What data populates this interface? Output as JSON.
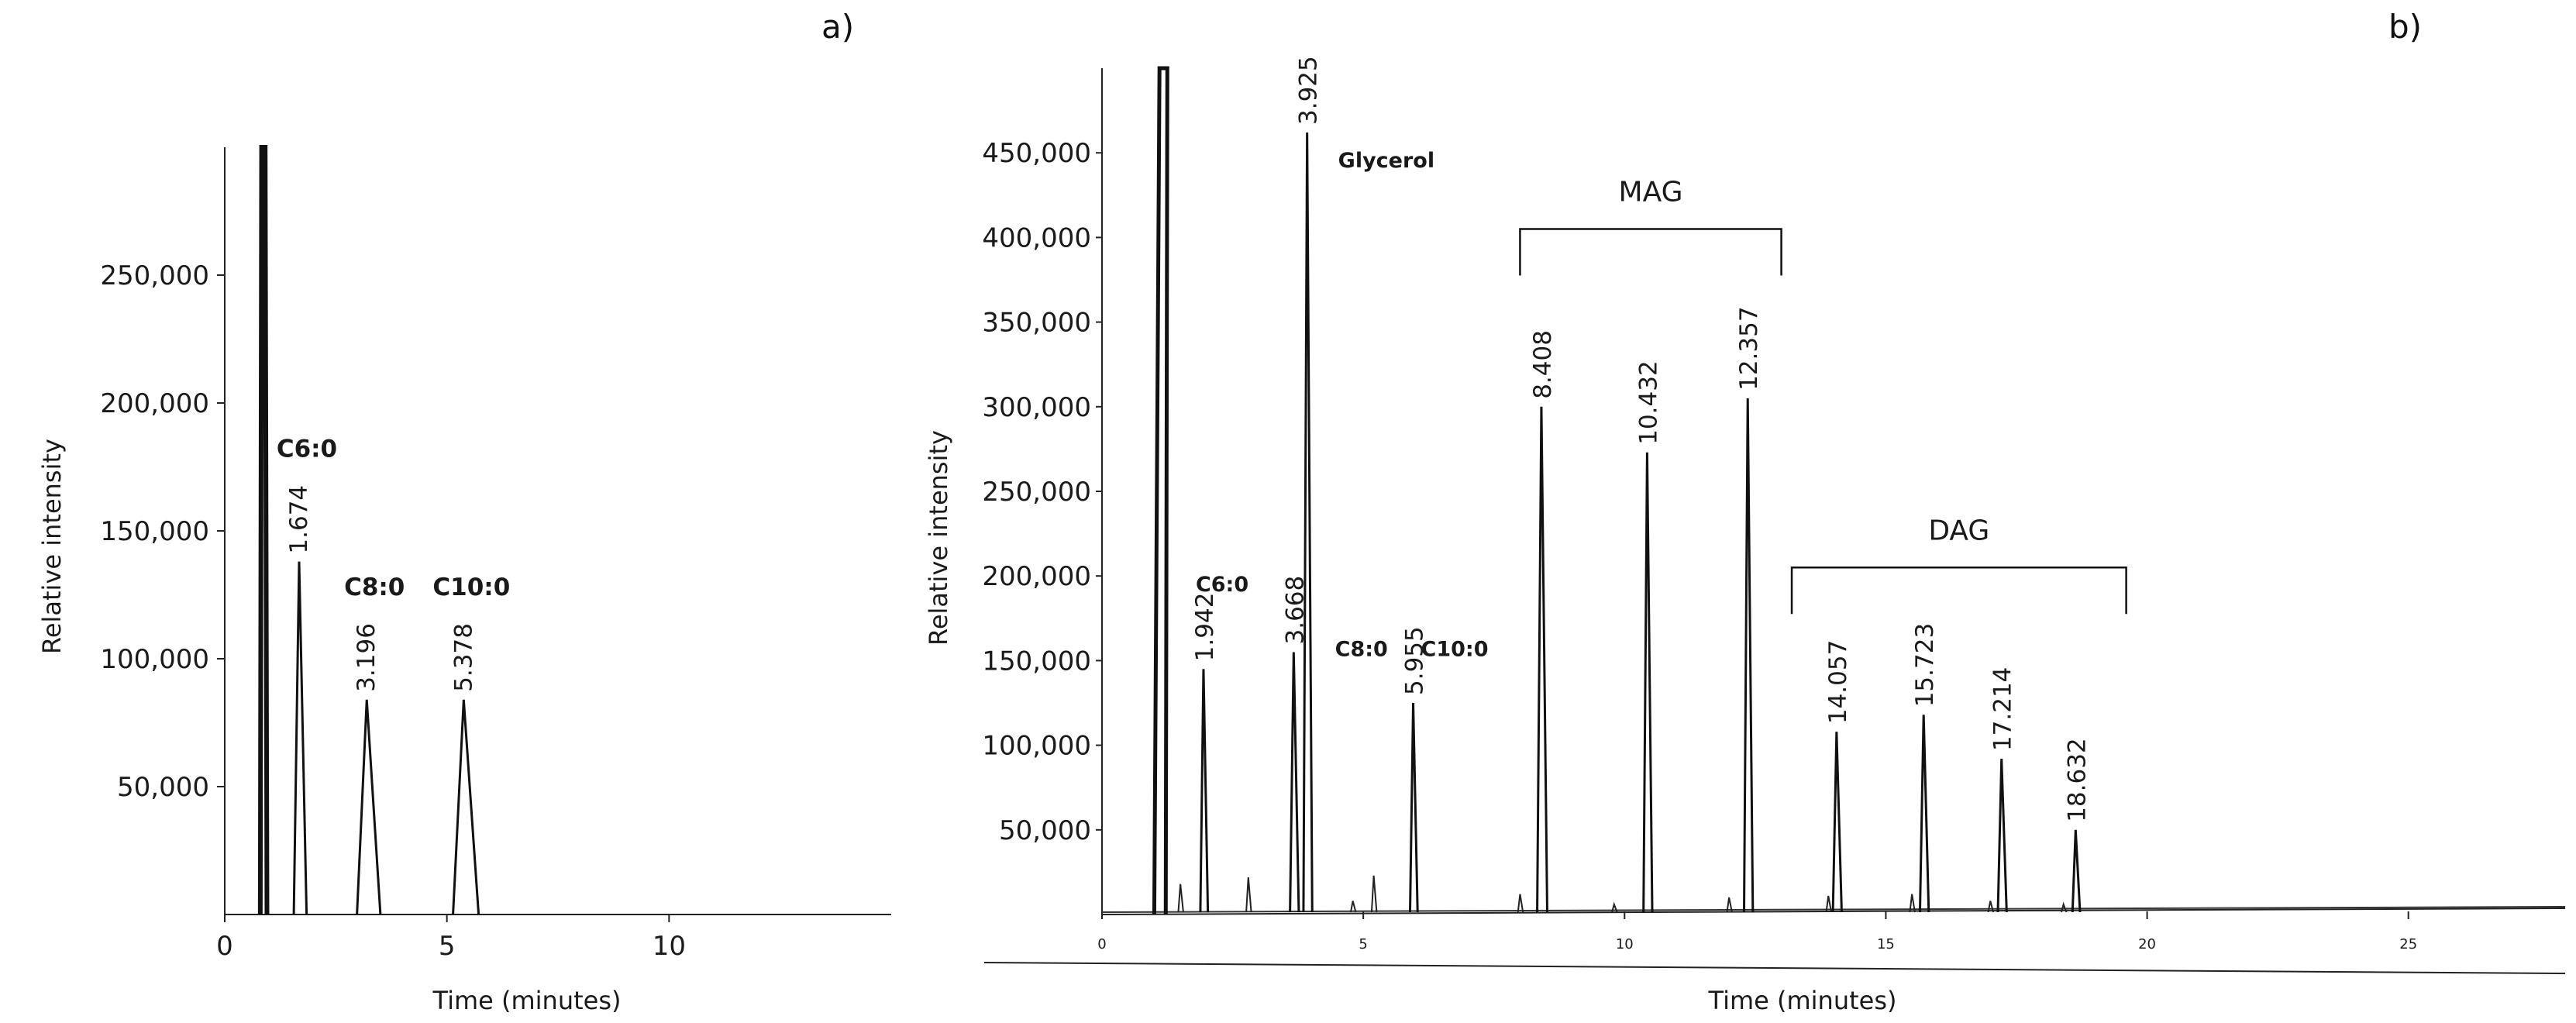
{
  "figure": {
    "panels": [
      "a)",
      "b)"
    ]
  },
  "chart_data": [
    {
      "panel": "a)",
      "type": "line",
      "xlabel": "Time (minutes)",
      "ylabel": "Relative intensity",
      "xlim": [
        0,
        15
      ],
      "ylim": [
        0,
        300000
      ],
      "x_ticks": [
        "0",
        "5",
        "10"
      ],
      "x_tick_values": [
        0,
        5,
        10
      ],
      "y_ticks": [
        "50,000",
        "100,000",
        "150,000",
        "200,000",
        "250,000"
      ],
      "y_tick_values": [
        50000,
        100000,
        150000,
        200000,
        250000
      ],
      "solvent_peak": {
        "x": 0.85,
        "y": 300000
      },
      "peaks": [
        {
          "time": "1.674",
          "x": 1.674,
          "y": 138000,
          "width": 0.12,
          "compound": "C6:0"
        },
        {
          "time": "3.196",
          "x": 3.196,
          "y": 84000,
          "width": 0.22,
          "compound": "C8:0"
        },
        {
          "time": "5.378",
          "x": 5.378,
          "y": 84000,
          "width": 0.24,
          "compound": "C10:0"
        }
      ]
    },
    {
      "panel": "b)",
      "type": "line",
      "xlabel": "Time (minutes)",
      "ylabel": "Relative intensity",
      "xlim": [
        0,
        28
      ],
      "ylim": [
        0,
        500000
      ],
      "x_ticks": [
        "0",
        "5",
        "10",
        "15",
        "20",
        "25"
      ],
      "x_tick_values": [
        0,
        5,
        10,
        15,
        20,
        25
      ],
      "y_ticks": [
        "50,000",
        "100,000",
        "150,000",
        "200,000",
        "250,000",
        "300,000",
        "350,000",
        "400,000",
        "450,000"
      ],
      "y_tick_values": [
        50000,
        100000,
        150000,
        200000,
        250000,
        300000,
        350000,
        400000,
        450000
      ],
      "solvent_peak": {
        "x": 1.1,
        "y": 500000
      },
      "peaks": [
        {
          "time": "1.942",
          "x": 1.942,
          "y": 145000,
          "width": 0.06
        },
        {
          "time": "3.668",
          "x": 3.668,
          "y": 155000,
          "width": 0.07
        },
        {
          "time": "3.925",
          "x": 3.925,
          "y": 462000,
          "width": 0.07
        },
        {
          "time": "5.955",
          "x": 5.955,
          "y": 125000,
          "width": 0.06
        },
        {
          "time": "8.408",
          "x": 8.408,
          "y": 300000,
          "width": 0.08
        },
        {
          "time": "10.432",
          "x": 10.432,
          "y": 273000,
          "width": 0.07
        },
        {
          "time": "12.357",
          "x": 12.357,
          "y": 305000,
          "width": 0.07
        },
        {
          "time": "14.057",
          "x": 14.057,
          "y": 108000,
          "width": 0.07
        },
        {
          "time": "15.723",
          "x": 15.723,
          "y": 118000,
          "width": 0.07
        },
        {
          "time": "17.214",
          "x": 17.214,
          "y": 92000,
          "width": 0.07
        },
        {
          "time": "18.632",
          "x": 18.632,
          "y": 50000,
          "width": 0.06
        }
      ],
      "minor_peaks": [
        {
          "x": 1.5,
          "y": 18000
        },
        {
          "x": 2.8,
          "y": 22000
        },
        {
          "x": 5.2,
          "y": 23000
        },
        {
          "x": 4.8,
          "y": 8000
        },
        {
          "x": 8.0,
          "y": 12000
        },
        {
          "x": 9.8,
          "y": 6000
        },
        {
          "x": 12.0,
          "y": 10000
        },
        {
          "x": 13.9,
          "y": 11000
        },
        {
          "x": 15.5,
          "y": 12000
        },
        {
          "x": 17.0,
          "y": 8000
        },
        {
          "x": 18.4,
          "y": 6000
        }
      ],
      "compound_labels": [
        "C6:0",
        "C8:0",
        "Glycerol",
        "C10:0"
      ],
      "groups": [
        {
          "label": "MAG",
          "from": 8.0,
          "to": 13.0,
          "y": 405000
        },
        {
          "label": "DAG",
          "from": 13.2,
          "to": 19.6,
          "y": 205000
        }
      ]
    }
  ]
}
